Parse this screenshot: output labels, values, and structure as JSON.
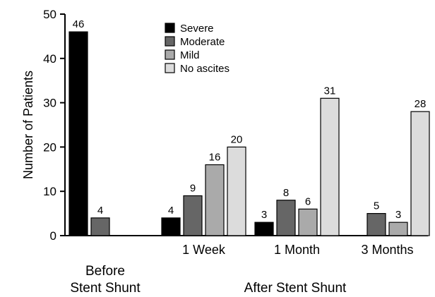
{
  "chart_data": {
    "type": "bar",
    "title": "",
    "ylabel": "Number of Patients",
    "ylim": [
      0,
      50
    ],
    "yticks": [
      0,
      10,
      20,
      30,
      40,
      50
    ],
    "categories": [
      "",
      "1 Week",
      "1 Month",
      "3 Months"
    ],
    "group_labels": [
      "Before\nStent Shunt",
      "After Stent Shunt"
    ],
    "group_labels_lines": [
      [
        "Before",
        "Stent Shunt"
      ],
      [
        "After Stent Shunt"
      ]
    ],
    "series": [
      {
        "name": "Severe",
        "color": "#000000",
        "values": [
          46,
          4,
          3,
          null
        ]
      },
      {
        "name": "Moderate",
        "color": "#666666",
        "values": [
          4,
          9,
          8,
          5
        ]
      },
      {
        "name": "Mild",
        "color": "#aaaaaa",
        "values": [
          null,
          16,
          6,
          3
        ]
      },
      {
        "name": "No ascites",
        "color": "#dcdcdc",
        "values": [
          null,
          20,
          31,
          28
        ]
      }
    ],
    "data_labels": [
      [
        46,
        4,
        3,
        null
      ],
      [
        4,
        9,
        8,
        5
      ],
      [
        null,
        16,
        6,
        3
      ],
      [
        null,
        20,
        31,
        28
      ]
    ],
    "legend": "top-center",
    "grid": false
  }
}
